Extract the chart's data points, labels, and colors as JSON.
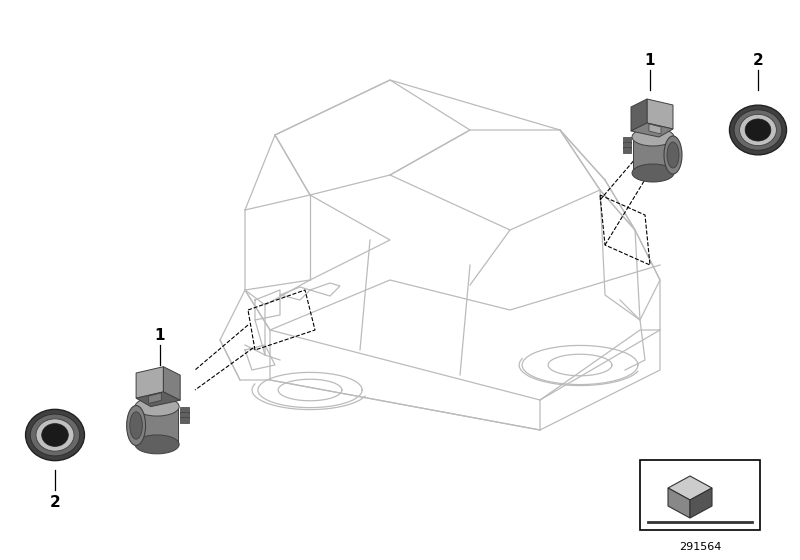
{
  "background_color": "#ffffff",
  "diagram_id": "291564",
  "car_line_color": "#bbbbbb",
  "car_lw": 0.9,
  "part_dark": "#606060",
  "part_mid": "#808080",
  "part_light": "#aaaaaa",
  "part_highlight": "#cccccc",
  "ring_outer": "#404040",
  "ring_mid": "#686868",
  "ring_inner": "#c0c0c0",
  "ring_hole": "#1a1a1a",
  "leader_color": "#333333",
  "label_color": "#000000",
  "fig_width": 8.0,
  "fig_height": 5.6,
  "dpi": 100
}
